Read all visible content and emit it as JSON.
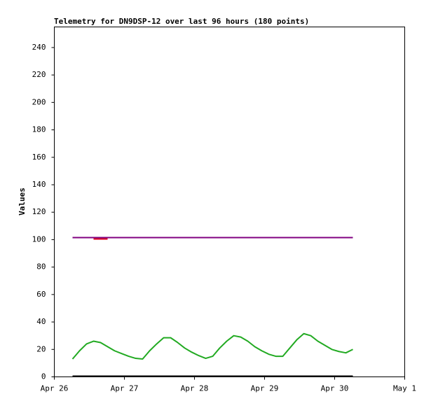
{
  "chart_data": {
    "type": "line",
    "title": "Telemetry for DN9DSP-12 over last 96 hours (180 points)",
    "y_label": "Values",
    "x": [
      0.26,
      0.36,
      0.46,
      0.56,
      0.66,
      0.76,
      0.86,
      0.96,
      1.06,
      1.16,
      1.26,
      1.36,
      1.46,
      1.56,
      1.66,
      1.76,
      1.86,
      1.96,
      2.06,
      2.16,
      2.26,
      2.36,
      2.46,
      2.56,
      2.66,
      2.76,
      2.86,
      2.96,
      3.06,
      3.16,
      3.26,
      3.36,
      3.46,
      3.56,
      3.66,
      3.76,
      3.86,
      3.96,
      4.06,
      4.16,
      4.26
    ],
    "series": [
      {
        "color": "#800080",
        "values": [
          101.5,
          101.5,
          101.5,
          101.5,
          101.5,
          101.5,
          101.5,
          101.5,
          101.5,
          101.5,
          101.5,
          101.5,
          101.5,
          101.5,
          101.5,
          101.5,
          101.5,
          101.5,
          101.5,
          101.5,
          101.5,
          101.5,
          101.5,
          101.5,
          101.5,
          101.5,
          101.5,
          101.5,
          101.5,
          101.5,
          101.5,
          101.5,
          101.5,
          101.5,
          101.5,
          101.5,
          101.5,
          101.5,
          101.5,
          101.5,
          101.5
        ]
      },
      {
        "color": "#dd0022",
        "values": [
          null,
          null,
          null,
          100.5,
          100.5,
          100.5,
          null,
          null,
          null,
          null,
          null,
          null,
          null,
          null,
          null,
          null,
          null,
          null,
          null,
          null,
          null,
          null,
          null,
          null,
          null,
          null,
          null,
          null,
          null,
          null,
          null,
          null,
          null,
          null,
          null,
          null,
          null,
          null,
          null,
          null,
          null
        ]
      },
      {
        "color": "#22aa22",
        "values": [
          13,
          19,
          24,
          26,
          25,
          22,
          19,
          17,
          15,
          13.5,
          13,
          19,
          24,
          28.5,
          28.5,
          25,
          21,
          18,
          15.5,
          13.5,
          15,
          21,
          26,
          30,
          29,
          26,
          22,
          19,
          16.5,
          15,
          15,
          21,
          27,
          31.5,
          30,
          26,
          23,
          20,
          18.5,
          17.5,
          20
        ]
      },
      {
        "color": "#000000",
        "values": [
          0.5,
          0.5,
          0.5,
          0.5,
          0.5,
          0.5,
          0.5,
          0.5,
          0.5,
          0.5,
          0.5,
          0.5,
          0.5,
          0.5,
          0.5,
          0.5,
          0.5,
          0.5,
          0.5,
          0.5,
          0.5,
          0.5,
          0.5,
          0.5,
          0.5,
          0.5,
          0.5,
          0.5,
          0.5,
          0.5,
          0.5,
          0.5,
          0.5,
          0.5,
          0.5,
          0.5,
          0.5,
          0.5,
          0.5,
          0.5,
          0.5
        ]
      }
    ],
    "xlim": [
      0,
      5
    ],
    "xticks": [
      {
        "value": 0,
        "label": "Apr 26"
      },
      {
        "value": 1,
        "label": "Apr 27"
      },
      {
        "value": 2,
        "label": "Apr 28"
      },
      {
        "value": 3,
        "label": "Apr 29"
      },
      {
        "value": 4,
        "label": "Apr 30"
      },
      {
        "value": 5,
        "label": "May 1"
      }
    ],
    "ylim": [
      0,
      255
    ],
    "yticks": [
      0,
      20,
      40,
      60,
      80,
      100,
      120,
      140,
      160,
      180,
      200,
      220,
      240
    ]
  }
}
